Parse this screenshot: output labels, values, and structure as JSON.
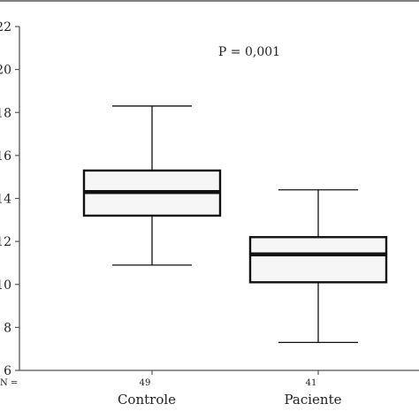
{
  "chart_data": {
    "type": "boxplot",
    "title": "",
    "xlabel": "",
    "ylabel": "",
    "ylim": [
      6,
      22
    ],
    "yticks": [
      6,
      8,
      10,
      12,
      14,
      16,
      18,
      20,
      22
    ],
    "ytick_labels": [
      "6",
      "8",
      "10",
      "12",
      "14",
      "16",
      "18",
      "20",
      "22"
    ],
    "categories": [
      "Controle",
      "Paciente"
    ],
    "n_label": "N =",
    "n_values": [
      "49",
      "41"
    ],
    "annotation": "P = 0,001",
    "boxes": [
      {
        "category": "Controle",
        "n": 49,
        "whisker_low": 10.9,
        "q1": 13.2,
        "median": 14.3,
        "q3": 15.3,
        "whisker_high": 18.3
      },
      {
        "category": "Paciente",
        "n": 41,
        "whisker_low": 7.3,
        "q1": 10.1,
        "median": 11.4,
        "q3": 12.2,
        "whisker_high": 14.4
      }
    ],
    "grid": false,
    "box_fill": "#f6f6f6",
    "line_color": "#111111",
    "frame_color": "#555555"
  }
}
